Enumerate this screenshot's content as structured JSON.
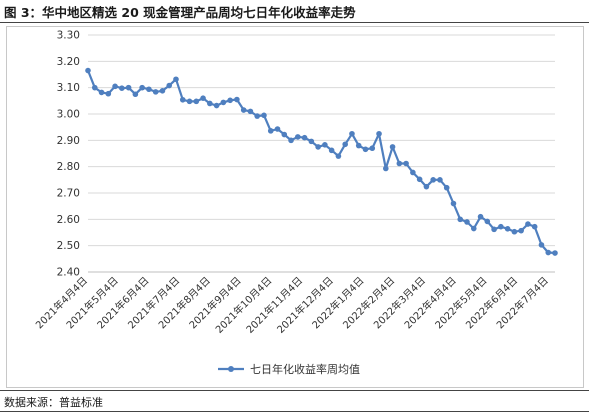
{
  "title": "图 3：华中地区精选 20 现金管理产品周均七日年化收益率走势",
  "source": "数据来源：普益标准",
  "chart_data": {
    "type": "line",
    "title": "",
    "xlabel": "",
    "ylabel": "",
    "ylim": [
      2.4,
      3.3
    ],
    "yticks": [
      "3.30",
      "3.20",
      "3.10",
      "3.00",
      "2.90",
      "2.80",
      "2.70",
      "2.60",
      "2.50",
      "2.40"
    ],
    "grid": true,
    "legend": "bottom",
    "x_tick_labels": [
      "2021年4月4日",
      "2021年5月4日",
      "2021年6月4日",
      "2021年7月4日",
      "2021年8月4日",
      "2021年9月4日",
      "2021年10月4日",
      "2021年11月4日",
      "2021年12月4日",
      "2022年1月4日",
      "2022年2月4日",
      "2022年3月4日",
      "2022年4月4日",
      "2022年5月4日",
      "2022年6月4日",
      "2022年7月4日"
    ],
    "series": [
      {
        "name": "七日年化收益率周均值",
        "color": "#4f7fbf",
        "values": [
          3.165,
          3.1,
          3.082,
          3.077,
          3.105,
          3.098,
          3.1,
          3.075,
          3.1,
          3.094,
          3.084,
          3.088,
          3.108,
          3.132,
          3.054,
          3.048,
          3.048,
          3.06,
          3.04,
          3.032,
          3.044,
          3.052,
          3.055,
          3.015,
          3.01,
          2.992,
          2.995,
          2.936,
          2.943,
          2.922,
          2.9,
          2.913,
          2.91,
          2.896,
          2.875,
          2.883,
          2.862,
          2.84,
          2.885,
          2.925,
          2.88,
          2.866,
          2.87,
          2.925,
          2.793,
          2.875,
          2.812,
          2.812,
          2.778,
          2.752,
          2.724,
          2.75,
          2.75,
          2.72,
          2.66,
          2.6,
          2.59,
          2.565,
          2.61,
          2.592,
          2.562,
          2.572,
          2.564,
          2.553,
          2.557,
          2.582,
          2.572,
          2.503,
          2.474,
          2.472
        ]
      }
    ]
  }
}
